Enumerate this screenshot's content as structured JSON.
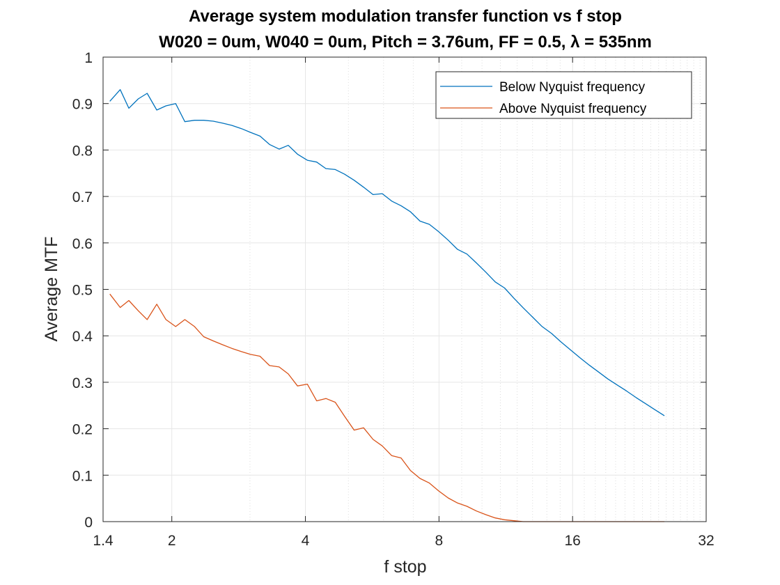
{
  "chart_data": {
    "type": "line",
    "title": "Average system modulation transfer function vs f stop",
    "subtitle": "W020 = 0um, W040 = 0um, Pitch = 3.76um, FF = 0.5, λ = 535nm",
    "xlabel": "f stop",
    "ylabel": "Average MTF",
    "xscale": "log2",
    "xlim": [
      1.4,
      32
    ],
    "ylim": [
      0,
      1
    ],
    "grid": true,
    "legend_position": "top-right",
    "x_ticks": [
      1.4,
      2,
      4,
      8,
      16,
      32
    ],
    "x_tick_labels": [
      "1.4",
      "2",
      "4",
      "8",
      "16",
      "32"
    ],
    "y_ticks": [
      0,
      0.1,
      0.2,
      0.3,
      0.4,
      0.5,
      0.6,
      0.7,
      0.8,
      0.9,
      1
    ],
    "y_tick_labels": [
      "0",
      "0.1",
      "0.2",
      "0.3",
      "0.4",
      "0.5",
      "0.6",
      "0.7",
      "0.8",
      "0.9",
      "1"
    ],
    "series": [
      {
        "name": "Below Nyquist frequency",
        "color": "#0072BD",
        "points": [
          [
            1.45,
            0.905
          ],
          [
            1.53,
            0.93
          ],
          [
            1.6,
            0.89
          ],
          [
            1.68,
            0.91
          ],
          [
            1.76,
            0.922
          ],
          [
            1.85,
            0.886
          ],
          [
            1.94,
            0.895
          ],
          [
            2.04,
            0.9
          ],
          [
            2.14,
            0.861
          ],
          [
            2.25,
            0.864
          ],
          [
            2.36,
            0.864
          ],
          [
            2.48,
            0.862
          ],
          [
            2.6,
            0.858
          ],
          [
            2.73,
            0.853
          ],
          [
            2.87,
            0.846
          ],
          [
            3.01,
            0.838
          ],
          [
            3.16,
            0.83
          ],
          [
            3.32,
            0.812
          ],
          [
            3.49,
            0.802
          ],
          [
            3.66,
            0.81
          ],
          [
            3.84,
            0.791
          ],
          [
            4.04,
            0.778
          ],
          [
            4.24,
            0.774
          ],
          [
            4.45,
            0.76
          ],
          [
            4.67,
            0.758
          ],
          [
            4.9,
            0.748
          ],
          [
            5.15,
            0.735
          ],
          [
            5.41,
            0.72
          ],
          [
            5.68,
            0.704
          ],
          [
            5.96,
            0.706
          ],
          [
            6.26,
            0.69
          ],
          [
            6.57,
            0.68
          ],
          [
            6.9,
            0.667
          ],
          [
            7.25,
            0.647
          ],
          [
            7.61,
            0.64
          ],
          [
            7.99,
            0.624
          ],
          [
            8.39,
            0.606
          ],
          [
            8.81,
            0.586
          ],
          [
            9.25,
            0.576
          ],
          [
            9.71,
            0.557
          ],
          [
            10.2,
            0.537
          ],
          [
            10.71,
            0.516
          ],
          [
            11.24,
            0.503
          ],
          [
            11.8,
            0.481
          ],
          [
            12.39,
            0.46
          ],
          [
            13.01,
            0.44
          ],
          [
            13.66,
            0.42
          ],
          [
            14.35,
            0.405
          ],
          [
            15.06,
            0.387
          ],
          [
            15.82,
            0.37
          ],
          [
            16.61,
            0.353
          ],
          [
            17.44,
            0.337
          ],
          [
            18.31,
            0.322
          ],
          [
            19.22,
            0.307
          ],
          [
            20.18,
            0.294
          ],
          [
            21.19,
            0.281
          ],
          [
            22.25,
            0.267
          ],
          [
            23.36,
            0.254
          ],
          [
            24.53,
            0.241
          ],
          [
            25.76,
            0.228
          ]
        ]
      },
      {
        "name": "Above Nyquist frequency",
        "color": "#D95319",
        "points": [
          [
            1.45,
            0.49
          ],
          [
            1.53,
            0.461
          ],
          [
            1.6,
            0.476
          ],
          [
            1.68,
            0.454
          ],
          [
            1.76,
            0.435
          ],
          [
            1.85,
            0.468
          ],
          [
            1.94,
            0.435
          ],
          [
            2.04,
            0.42
          ],
          [
            2.14,
            0.435
          ],
          [
            2.25,
            0.42
          ],
          [
            2.36,
            0.398
          ],
          [
            2.48,
            0.389
          ],
          [
            2.6,
            0.381
          ],
          [
            2.73,
            0.373
          ],
          [
            2.87,
            0.366
          ],
          [
            3.01,
            0.36
          ],
          [
            3.16,
            0.356
          ],
          [
            3.32,
            0.336
          ],
          [
            3.49,
            0.333
          ],
          [
            3.66,
            0.318
          ],
          [
            3.84,
            0.292
          ],
          [
            4.04,
            0.296
          ],
          [
            4.24,
            0.26
          ],
          [
            4.45,
            0.265
          ],
          [
            4.67,
            0.257
          ],
          [
            4.9,
            0.227
          ],
          [
            5.15,
            0.197
          ],
          [
            5.41,
            0.202
          ],
          [
            5.68,
            0.177
          ],
          [
            5.96,
            0.163
          ],
          [
            6.26,
            0.142
          ],
          [
            6.57,
            0.137
          ],
          [
            6.9,
            0.11
          ],
          [
            7.25,
            0.093
          ],
          [
            7.61,
            0.083
          ],
          [
            7.99,
            0.066
          ],
          [
            8.39,
            0.051
          ],
          [
            8.81,
            0.04
          ],
          [
            9.25,
            0.033
          ],
          [
            9.71,
            0.023
          ],
          [
            10.2,
            0.015
          ],
          [
            10.71,
            0.008
          ],
          [
            11.24,
            0.004
          ],
          [
            11.8,
            0.002
          ],
          [
            12.39,
            0.0
          ],
          [
            13.01,
            0.0
          ],
          [
            13.66,
            0.0
          ],
          [
            14.35,
            0.0
          ],
          [
            15.06,
            0.0
          ],
          [
            15.82,
            0.0
          ],
          [
            16.61,
            0.0
          ],
          [
            17.44,
            0.0
          ],
          [
            18.31,
            0.0
          ],
          [
            19.22,
            0.0
          ],
          [
            20.18,
            0.0
          ],
          [
            21.19,
            0.0
          ],
          [
            22.25,
            0.0
          ],
          [
            23.36,
            0.0
          ],
          [
            24.53,
            0.0
          ],
          [
            25.76,
            0.0
          ]
        ]
      }
    ]
  }
}
